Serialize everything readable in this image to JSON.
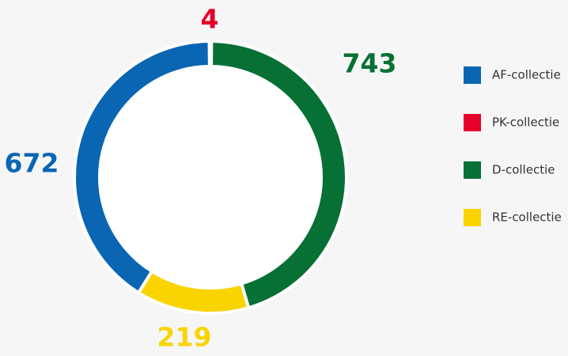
{
  "chart_data": {
    "type": "donut",
    "series": [
      {
        "name": "AF-collectie",
        "color": "#0a66b2",
        "values": [
          672
        ]
      },
      {
        "name": "PK-collectie",
        "color": "#e4002b",
        "values": [
          4
        ]
      },
      {
        "name": "D-collectie",
        "color": "#077034",
        "values": [
          743
        ]
      },
      {
        "name": "RE-collectie",
        "color": "#f9d400",
        "values": [
          219
        ]
      }
    ],
    "legend": "right"
  }
}
